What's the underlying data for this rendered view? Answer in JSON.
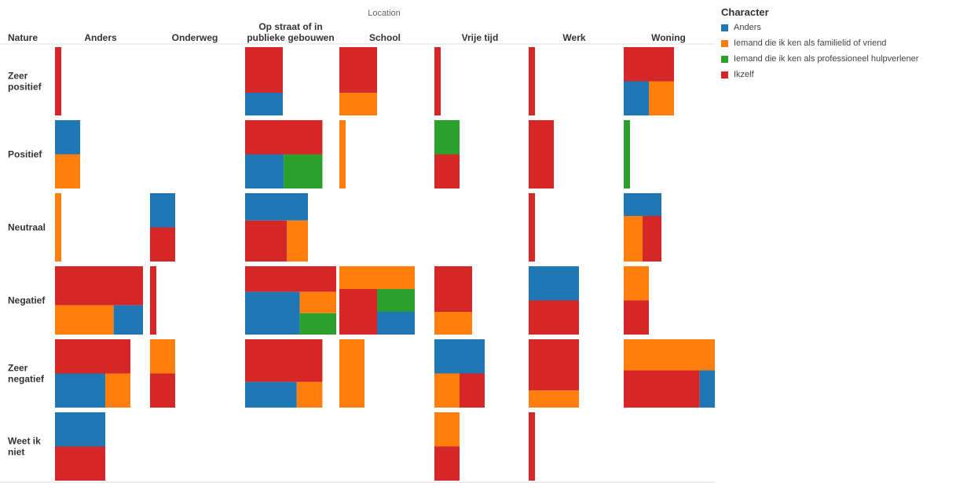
{
  "chart_data": {
    "type": "treemap-matrix",
    "column_header_title": "Location",
    "row_header_title": "Nature",
    "columns": [
      "Anders",
      "Onderweg",
      "Op straat of in publieke gebouwen",
      "School",
      "Vrije tijd",
      "Werk",
      "Woning"
    ],
    "column_labels": [
      [
        "Anders"
      ],
      [
        "Onderweg"
      ],
      [
        "Op straat of in",
        "publieke gebouwen"
      ],
      [
        "School"
      ],
      [
        "Vrije tijd"
      ],
      [
        "Werk"
      ],
      [
        "Woning"
      ]
    ],
    "rows": [
      "Zeer positief",
      "Positief",
      "Neutraal",
      "Negatief",
      "Zeer negatief",
      "Weet ik niet"
    ],
    "row_labels": [
      [
        "Zeer",
        "positief"
      ],
      [
        "Positief"
      ],
      [
        "Neutraal"
      ],
      [
        "Negatief"
      ],
      [
        "Zeer",
        "negatief"
      ],
      [
        "Weet ik",
        "niet"
      ]
    ],
    "legend_title": "Character",
    "series": [
      {
        "name": "Anders",
        "color": "#1f77b4"
      },
      {
        "name": "Iemand die ik ken als familielid of vriend",
        "color": "#ff7f0e"
      },
      {
        "name": "Iemand die ik ken als professioneel hulpverlener",
        "color": "#2ca02c"
      },
      {
        "name": "Ikzelf",
        "color": "#d62728"
      }
    ],
    "counts": [
      [
        {
          "Ikzelf": 1
        },
        {},
        {
          "Ikzelf": 2,
          "Anders": 1
        },
        {
          "Ikzelf": 2,
          "Iemand die ik ken als familielid of vriend": 1
        },
        {
          "Ikzelf": 1
        },
        {
          "Ikzelf": 1
        },
        {
          "Ikzelf": 2,
          "Anders": 1,
          "Iemand die ik ken als familielid of vriend": 1
        }
      ],
      [
        {
          "Anders": 1,
          "Iemand die ik ken als familielid of vriend": 1
        },
        {},
        {
          "Ikzelf": 4,
          "Anders": 2,
          "Iemand die ik ken als professioneel hulpverlener": 2
        },
        {
          "Iemand die ik ken als familielid of vriend": 1
        },
        {
          "Iemand die ik ken als professioneel hulpverlener": 1,
          "Ikzelf": 1
        },
        {
          "Ikzelf": 2
        },
        {
          "Iemand die ik ken als professioneel hulpverlener": 1
        }
      ],
      [
        {
          "Iemand die ik ken als familielid of vriend": 1
        },
        {
          "Anders": 1,
          "Ikzelf": 1
        },
        {
          "Anders": 2,
          "Ikzelf": 2,
          "Iemand die ik ken als familielid of vriend": 1
        },
        {},
        {},
        {
          "Ikzelf": 1
        },
        {
          "Anders": 1,
          "Iemand die ik ken als familielid of vriend": 1,
          "Ikzelf": 1
        }
      ],
      [
        {
          "Ikzelf": 4,
          "Iemand die ik ken als familielid of vriend": 2,
          "Anders": 1
        },
        {
          "Ikzelf": 1
        },
        {
          "Ikzelf": 6,
          "Anders": 6,
          "Iemand die ik ken als familielid of vriend": 2,
          "Iemand die ik ken als professioneel hulpverlener": 2
        },
        {
          "Iemand die ik ken als familielid of vriend": 2,
          "Ikzelf": 2,
          "Iemand die ik ken als professioneel hulpverlener": 1,
          "Anders": 1
        },
        {
          "Ikzelf": 2,
          "Iemand die ik ken als familielid of vriend": 1
        },
        {
          "Anders": 2,
          "Ikzelf": 2
        },
        {
          "Iemand die ik ken als familielid of vriend": 1,
          "Ikzelf": 1
        }
      ],
      [
        {
          "Ikzelf": 3,
          "Anders": 2,
          "Iemand die ik ken als familielid of vriend": 1
        },
        {
          "Iemand die ik ken als familielid of vriend": 1,
          "Ikzelf": 1
        },
        {
          "Ikzelf": 5,
          "Anders": 2,
          "Iemand die ik ken als familielid of vriend": 1
        },
        {
          "Iemand die ik ken als familielid of vriend": 2
        },
        {
          "Anders": 2,
          "Iemand die ik ken als familielid of vriend": 1,
          "Ikzelf": 1
        },
        {
          "Ikzelf": 3,
          "Iemand die ik ken als familielid of vriend": 1
        },
        {
          "Iemand die ik ken als familielid of vriend": 5,
          "Ikzelf": 5,
          "Anders": 1
        }
      ],
      [
        {
          "Anders": 2,
          "Ikzelf": 2
        },
        {},
        {},
        {},
        {
          "Iemand die ik ken als familielid of vriend": 1,
          "Ikzelf": 1
        },
        {
          "Ikzelf": 1
        },
        {}
      ]
    ]
  }
}
